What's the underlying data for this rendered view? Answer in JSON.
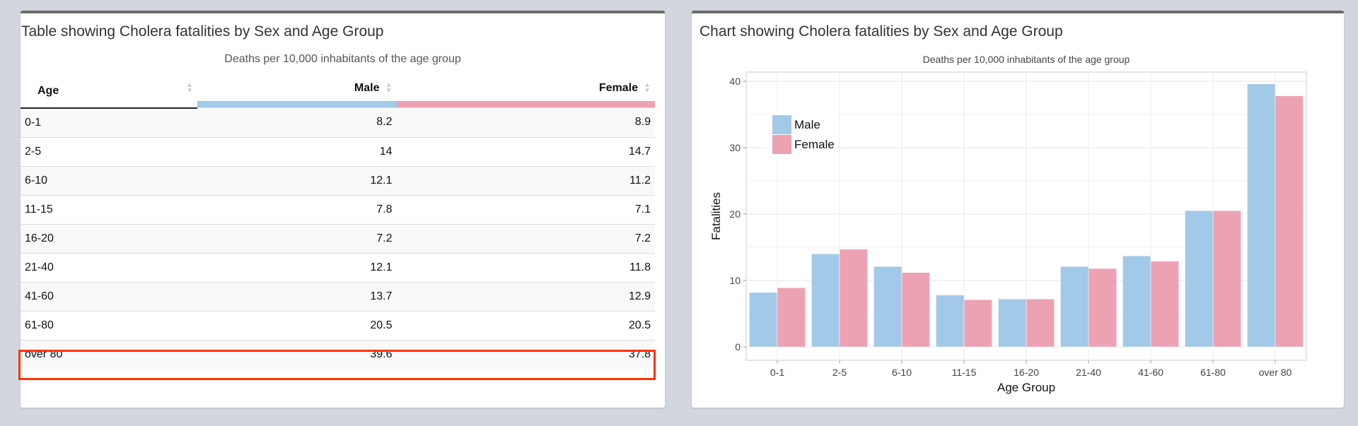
{
  "table_panel": {
    "title": "Table showing Cholera fatalities by Sex and Age Group",
    "subtitle": "Deaths per 10,000 inhabitants of the age group",
    "columns": [
      "Age",
      "Male",
      "Female"
    ],
    "rows": [
      [
        "0-1",
        "8.2",
        "8.9"
      ],
      [
        "2-5",
        "14",
        "14.7"
      ],
      [
        "6-10",
        "12.1",
        "11.2"
      ],
      [
        "11-15",
        "7.8",
        "7.1"
      ],
      [
        "16-20",
        "7.2",
        "7.2"
      ],
      [
        "21-40",
        "12.1",
        "11.8"
      ],
      [
        "41-60",
        "13.7",
        "12.9"
      ],
      [
        "61-80",
        "20.5",
        "20.5"
      ],
      [
        "over 80",
        "39.6",
        "37.8"
      ]
    ],
    "highlighted_row": "over 80"
  },
  "chart_panel": {
    "title": "Chart showing Cholera fatalities by Sex and Age Group"
  },
  "chart_data": {
    "type": "bar",
    "title": "Deaths per 10,000 inhabitants of the age group",
    "xlabel": "Age Group",
    "ylabel": "Fatalities",
    "categories": [
      "0-1",
      "2-5",
      "6-10",
      "11-15",
      "16-20",
      "21-40",
      "41-60",
      "61-80",
      "over 80"
    ],
    "series": [
      {
        "name": "Male",
        "color": "#a3c9e9",
        "values": [
          8.2,
          14,
          12.1,
          7.8,
          7.2,
          12.1,
          13.7,
          20.5,
          39.6
        ]
      },
      {
        "name": "Female",
        "color": "#eda2b4",
        "values": [
          8.9,
          14.7,
          11.2,
          7.1,
          7.2,
          11.8,
          12.9,
          20.5,
          37.8
        ]
      }
    ],
    "yticks": [
      0,
      10,
      20,
      30,
      40
    ],
    "ylim": [
      -3,
      41.5
    ],
    "grid": true,
    "legend_position": "top-left"
  },
  "colors": {
    "highlight": "#ff3300",
    "male": "#a3c9e9",
    "female": "#eda2b4"
  }
}
